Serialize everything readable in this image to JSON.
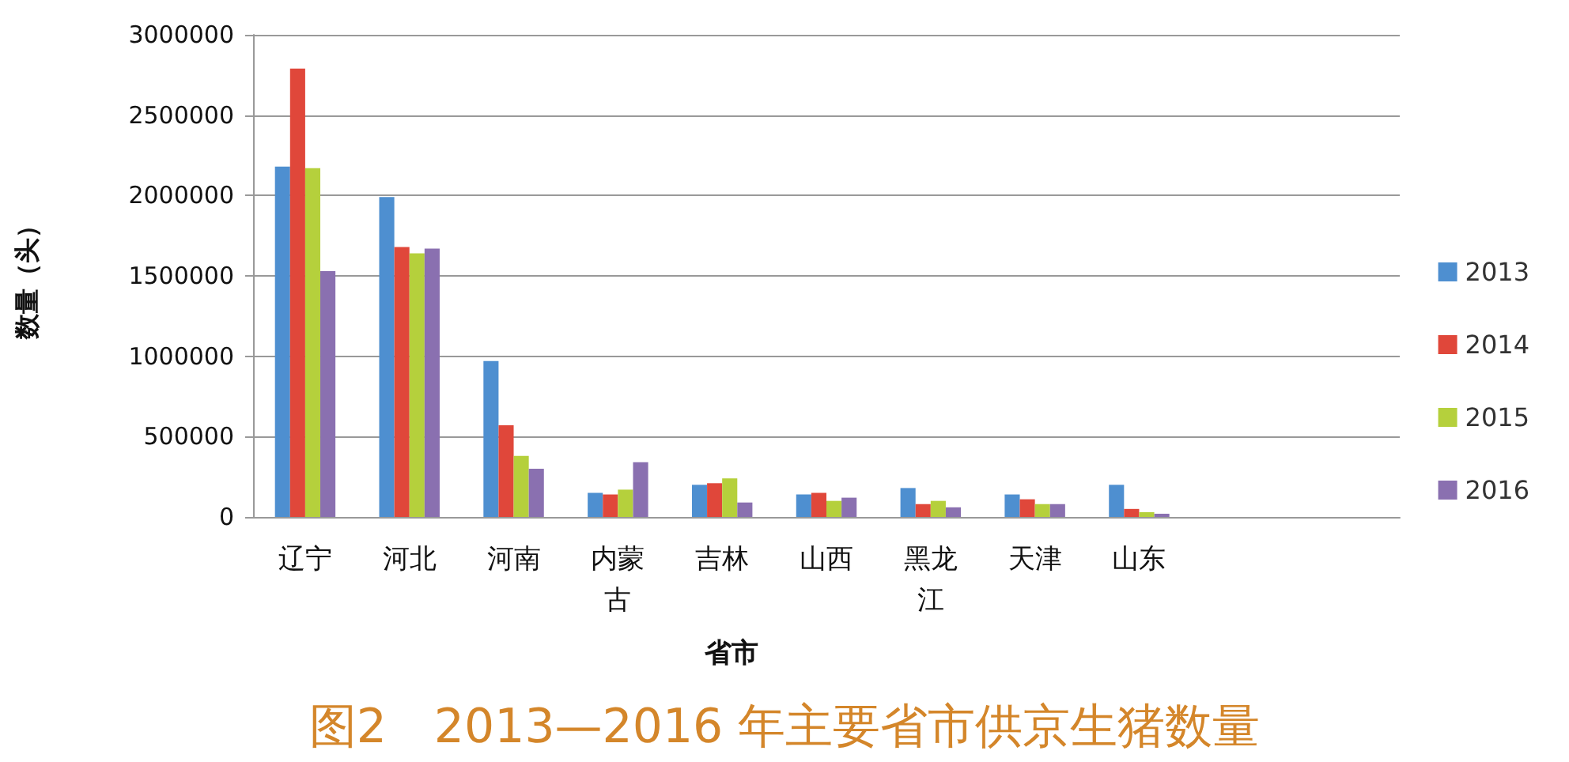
{
  "chart_data": {
    "type": "bar",
    "title": "图2　2013—2016 年主要省市供京生猪数量",
    "xlabel": "省市",
    "ylabel": "数量（头）",
    "categories": [
      "辽宁",
      "河北",
      "河南",
      "内蒙古",
      "吉林",
      "山西",
      "黑龙江",
      "天津",
      "山东",
      null,
      null
    ],
    "series": [
      {
        "name": "2013",
        "color": "#4e8fd0",
        "values": [
          2180000,
          1990000,
          970000,
          150000,
          200000,
          140000,
          180000,
          140000,
          200000,
          null,
          null
        ]
      },
      {
        "name": "2014",
        "color": "#e0473a",
        "values": [
          2790000,
          1680000,
          570000,
          140000,
          210000,
          150000,
          80000,
          110000,
          50000,
          null,
          null
        ]
      },
      {
        "name": "2015",
        "color": "#b5d03c",
        "values": [
          2170000,
          1640000,
          380000,
          170000,
          240000,
          100000,
          100000,
          80000,
          30000,
          null,
          null
        ]
      },
      {
        "name": "2016",
        "color": "#8a70b0",
        "values": [
          1530000,
          1670000,
          300000,
          340000,
          90000,
          120000,
          60000,
          80000,
          20000,
          null,
          null
        ]
      }
    ],
    "ylim": [
      0,
      3000000
    ],
    "yticks": [
      0,
      500000,
      1000000,
      1500000,
      2000000,
      2500000,
      3000000
    ],
    "grid": "y",
    "legend": "right"
  }
}
